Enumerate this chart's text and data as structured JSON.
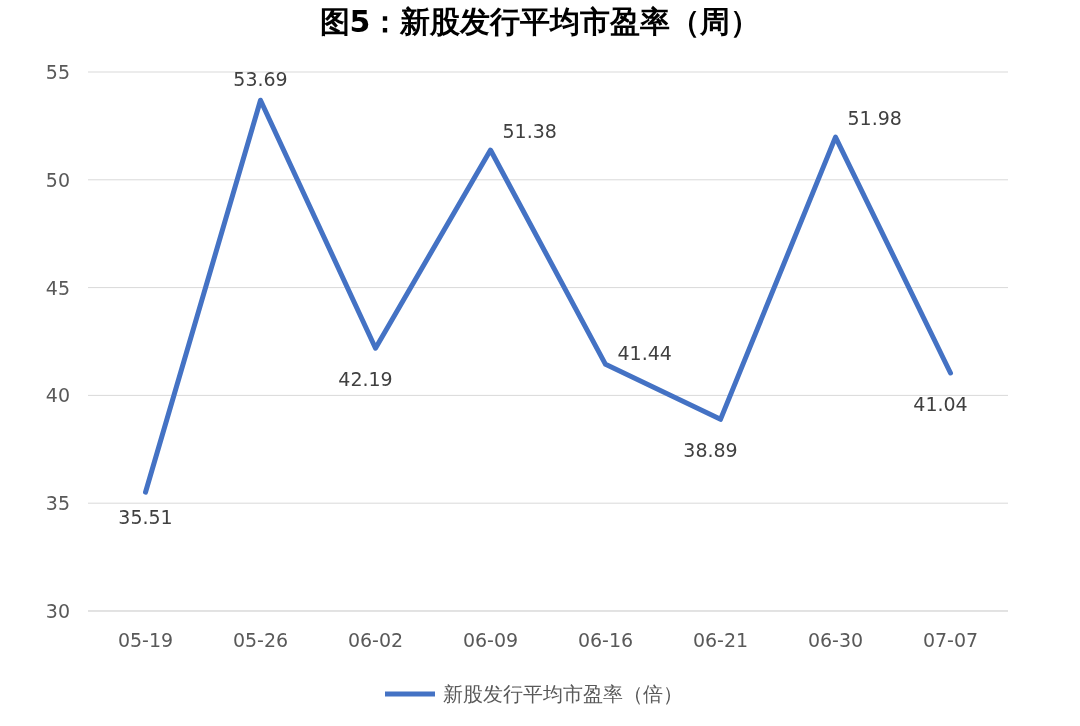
{
  "chart_data": {
    "type": "line",
    "title": "图5：新股发行平均市盈率（周）",
    "categories": [
      "05-19",
      "05-26",
      "06-02",
      "06-09",
      "06-16",
      "06-21",
      "06-30",
      "07-07"
    ],
    "series": [
      {
        "name": "新股发行平均市盈率（倍）",
        "color": "#4472c4",
        "values": [
          35.51,
          53.69,
          42.19,
          51.38,
          41.44,
          38.89,
          51.98,
          41.04
        ]
      }
    ],
    "ylim": [
      30,
      55
    ],
    "yticks": [
      30,
      35,
      40,
      45,
      50,
      55
    ],
    "grid": "y",
    "legend": "bottom",
    "data_labels": true,
    "marker": "none",
    "line_style": "solid"
  }
}
